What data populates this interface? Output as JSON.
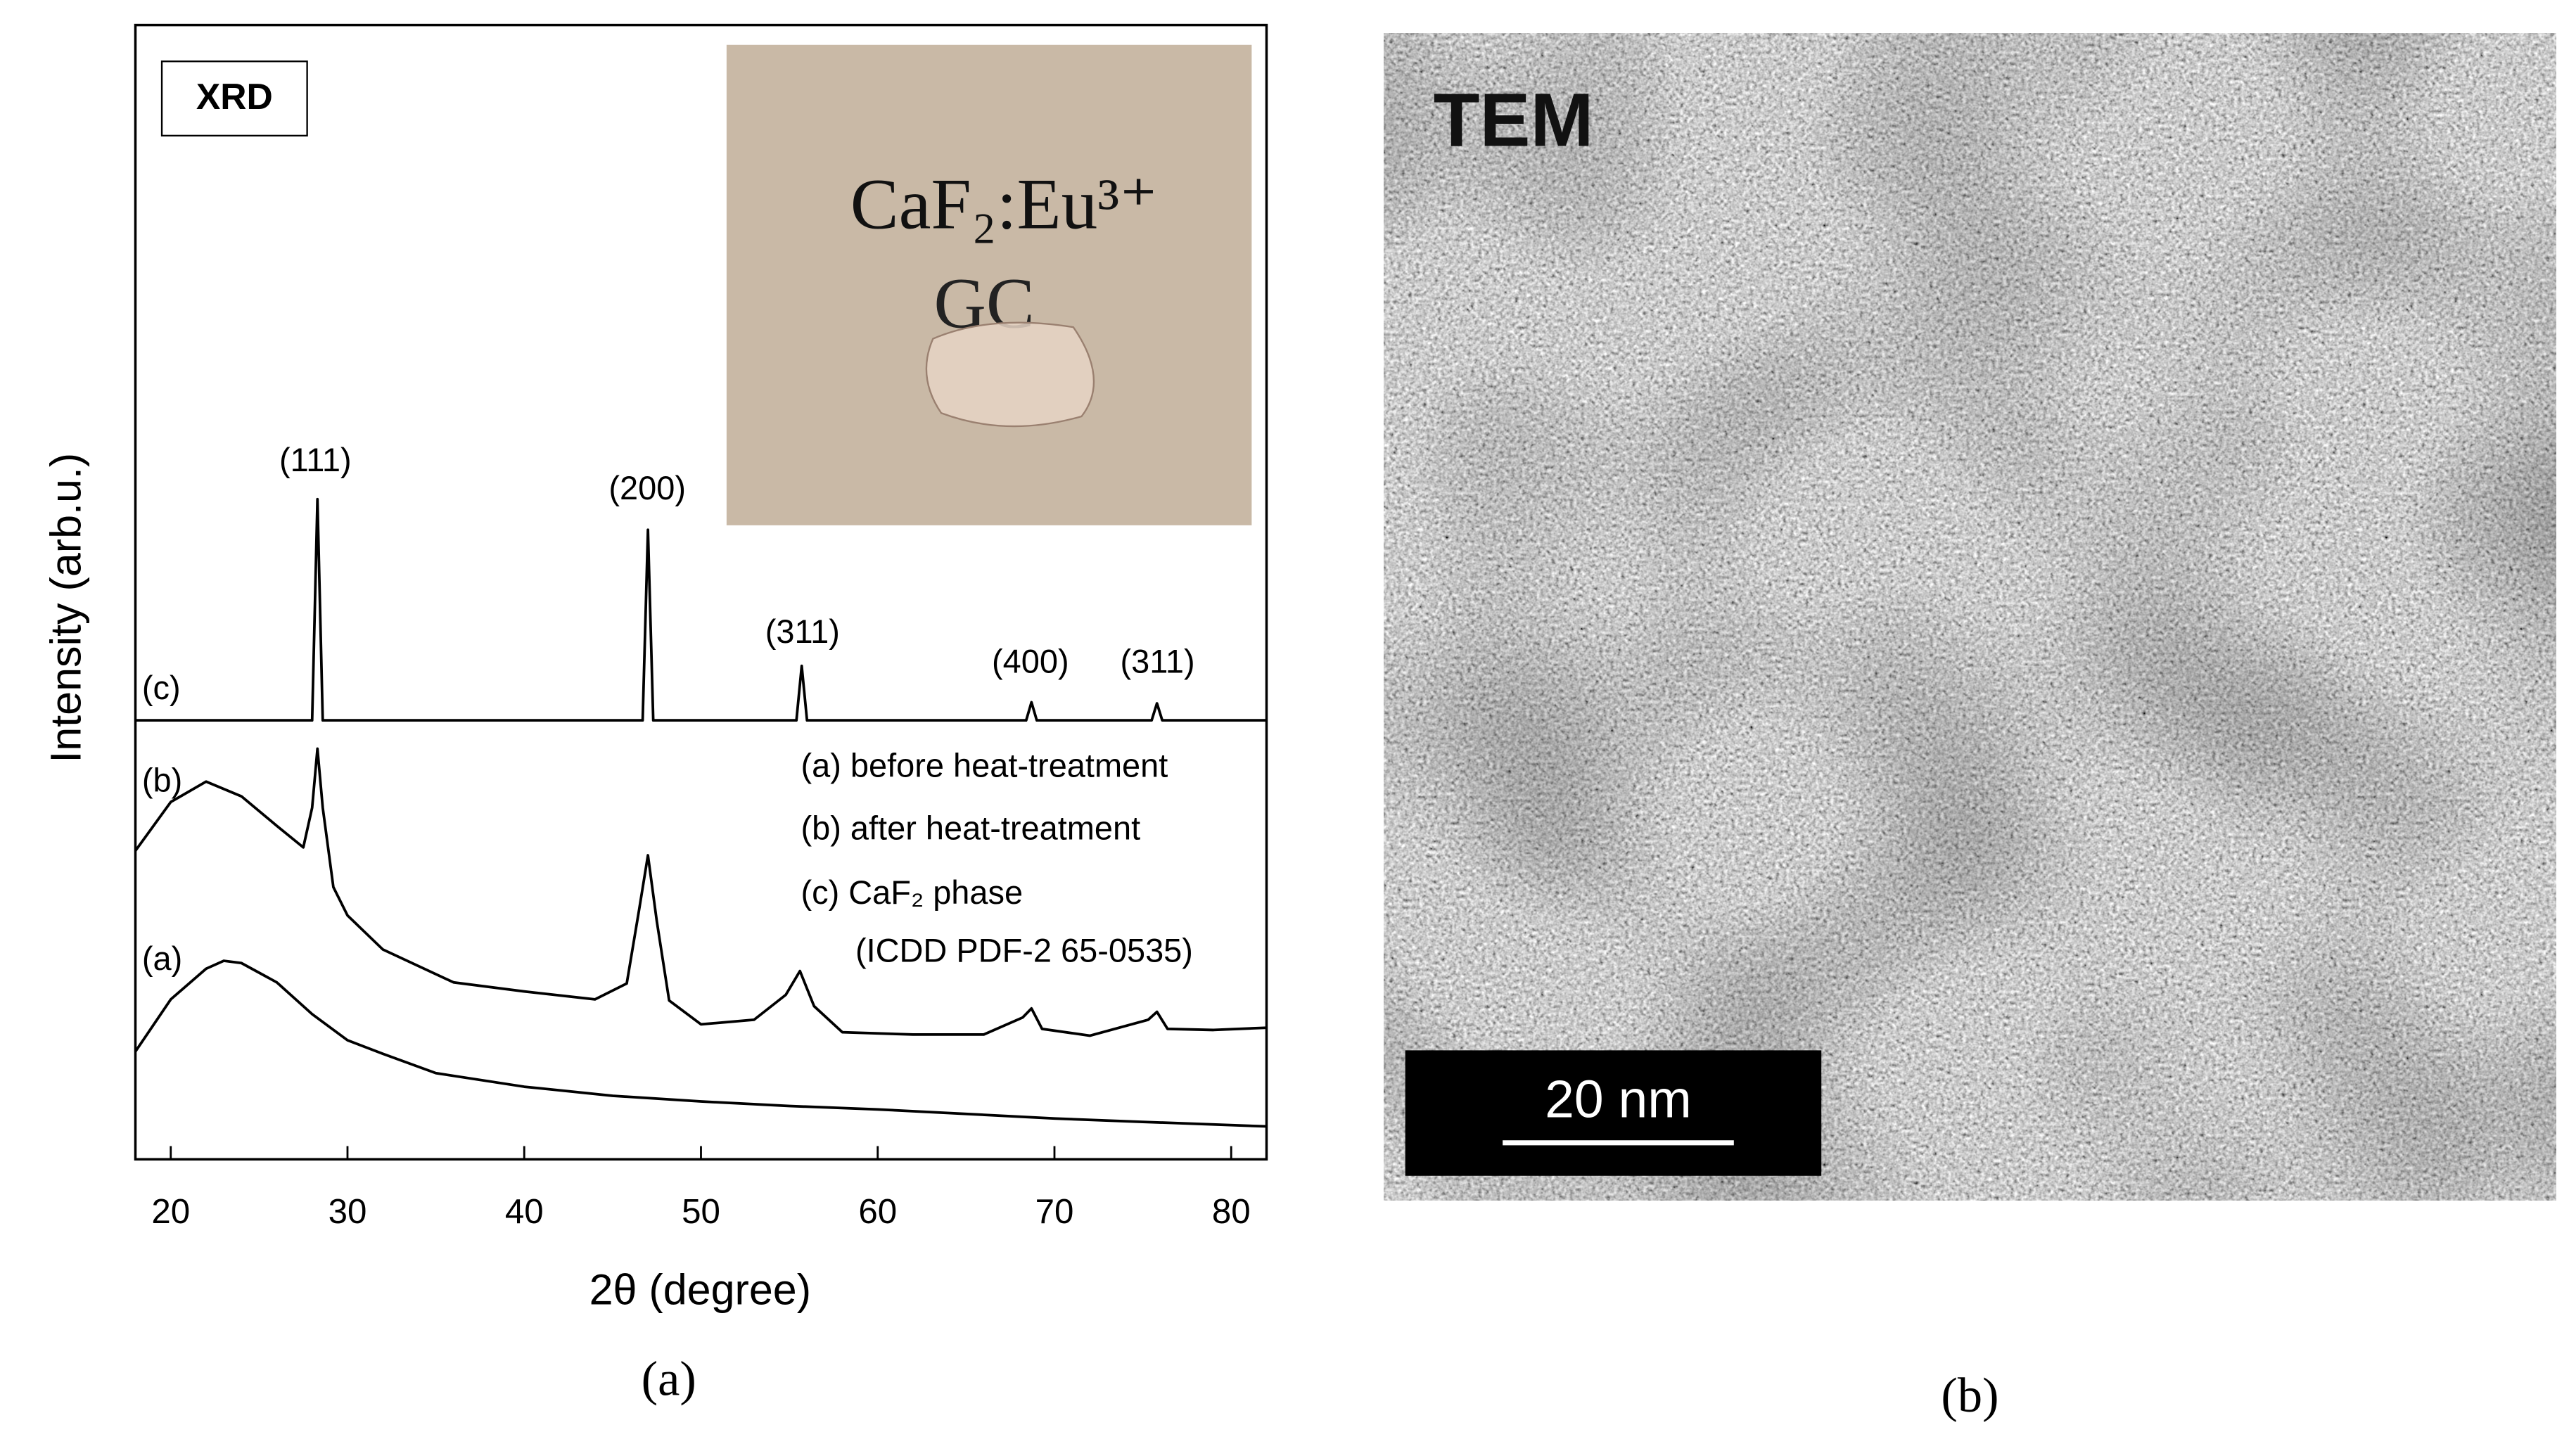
{
  "chart_data": {
    "type": "line",
    "title": "XRD",
    "xlabel": "2θ (degree)",
    "ylabel": "Intensity (arb.u.)",
    "xlim": [
      18,
      82
    ],
    "ylim": [
      0,
      100
    ],
    "xticks": [
      20,
      30,
      40,
      50,
      60,
      70,
      80
    ],
    "series": [
      {
        "name": "(a) before heat-treatment",
        "color": "#000000",
        "x": [
          18,
          20,
          22,
          23,
          24,
          26,
          28,
          30,
          32,
          35,
          40,
          45,
          50,
          55,
          60,
          65,
          70,
          75,
          82
        ],
        "values": [
          9.5,
          14.1,
          16.8,
          17.5,
          17.3,
          15.6,
          12.8,
          10.5,
          9.3,
          7.6,
          6.4,
          5.6,
          5.1,
          4.7,
          4.4,
          4.0,
          3.6,
          3.3,
          2.9
        ]
      },
      {
        "name": "(b) after heat-treatment",
        "color": "#000000",
        "x": [
          18,
          20,
          22,
          24,
          26,
          27.5,
          28.0,
          28.3,
          28.6,
          29.2,
          30,
          32,
          36,
          40,
          44,
          45.8,
          46.5,
          47.0,
          47.5,
          48.2,
          50,
          53,
          54.8,
          55.6,
          56.4,
          58,
          62,
          66,
          68.2,
          68.7,
          69.3,
          72,
          75.3,
          75.8,
          76.4,
          79,
          82
        ],
        "values": [
          27.2,
          31.5,
          33.3,
          32.0,
          29.4,
          27.5,
          31,
          36.2,
          31,
          24.0,
          21.5,
          18.5,
          15.6,
          14.8,
          14.1,
          15.5,
          22,
          26.8,
          21,
          14,
          11.9,
          12.3,
          14.5,
          16.6,
          13.5,
          11.2,
          11.0,
          11.0,
          12.5,
          13.3,
          11.5,
          10.9,
          12.3,
          13.0,
          11.5,
          11.4,
          11.6
        ]
      },
      {
        "name": "(c) CaF₂ phase",
        "color": "#000000",
        "x": [
          18,
          28.0,
          28.3,
          28.6,
          46.7,
          47.0,
          47.3,
          55.4,
          55.7,
          56.0,
          68.4,
          68.7,
          69.0,
          75.5,
          75.8,
          76.1,
          82
        ],
        "values": [
          38.7,
          38.7,
          58.2,
          38.7,
          38.7,
          55.5,
          38.7,
          38.7,
          43.5,
          38.7,
          38.7,
          40.3,
          38.7,
          38.7,
          40.2,
          38.7,
          38.7
        ]
      }
    ],
    "legend_note": "(ICDD PDF-2 65-0535)",
    "annotations": [
      "(111)",
      "(200)",
      "(311)",
      "(400)",
      "(311)"
    ],
    "curve_labels": [
      "(c)",
      "(b)",
      "(a)"
    ],
    "inset_text": [
      "CaF₂:Eu³⁺",
      "GC"
    ]
  },
  "panels": {
    "a": "(a)",
    "b": "(b)"
  },
  "tem": {
    "label": "TEM",
    "scale_bar": "20 nm"
  }
}
